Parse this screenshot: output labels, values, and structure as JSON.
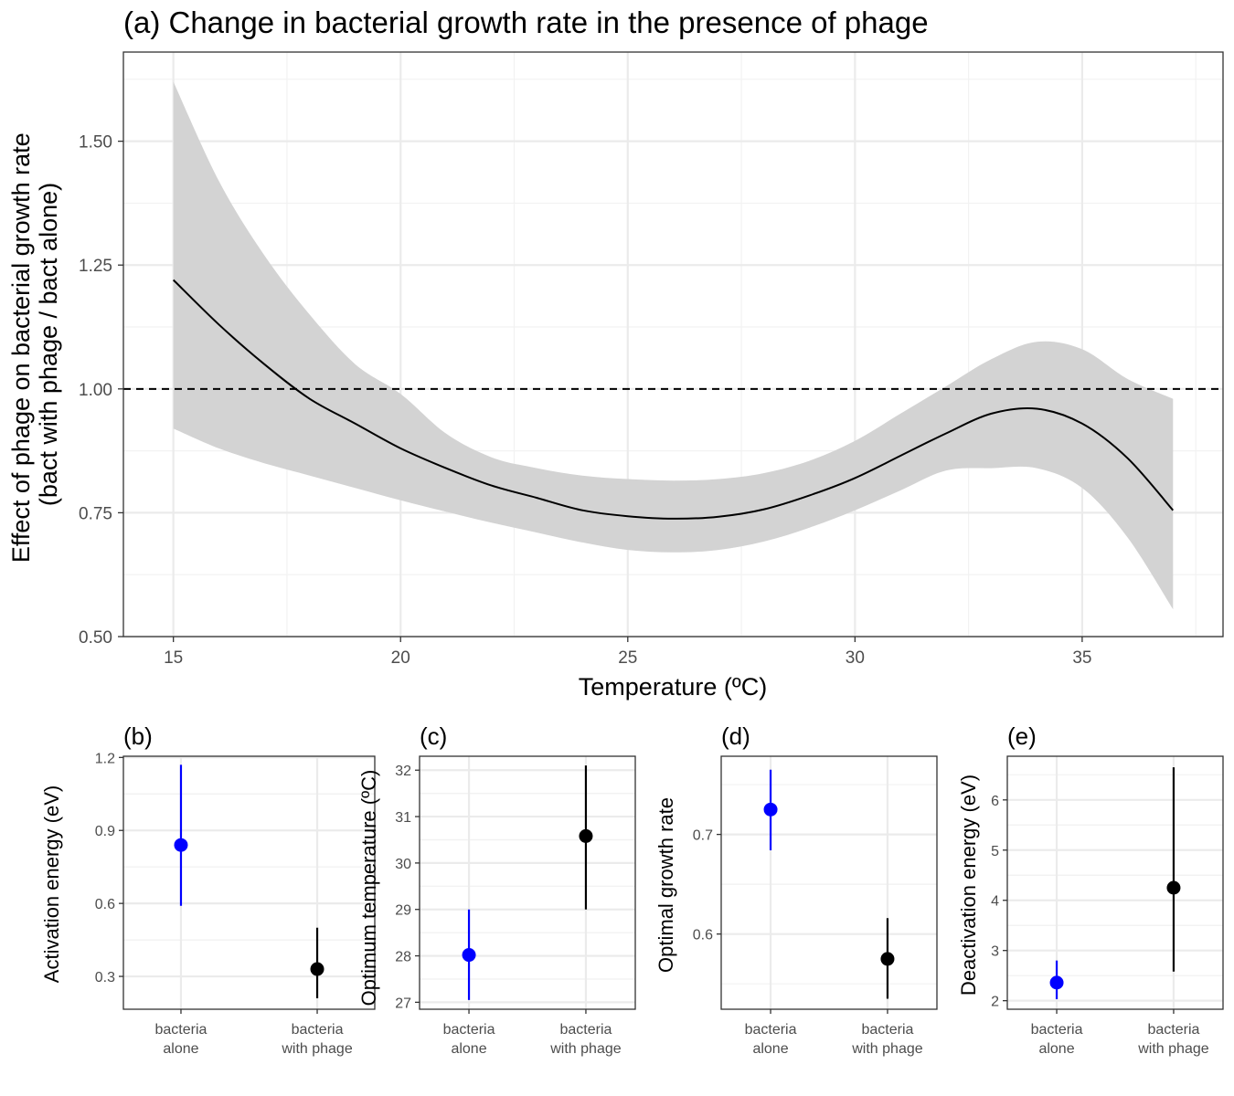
{
  "figure": {
    "colors": {
      "alone": "#0000ff",
      "phage": "#000000",
      "ribbon": "#d3d3d3",
      "grid": "#ebebeb"
    }
  },
  "chart_data": [
    {
      "id": "a",
      "type": "line",
      "title": "(a) Change in bacterial growth rate in the presence of phage",
      "xlabel": "Temperature (ºC)",
      "ylabel": [
        "Effect of phage on bacterial growth rate",
        "(bact with phage / bact alone)"
      ],
      "xlim": [
        13.9,
        38.1
      ],
      "ylim": [
        0.5,
        1.68
      ],
      "xticks": [
        15,
        20,
        25,
        30,
        35
      ],
      "yticks": [
        0.5,
        0.75,
        1.0,
        1.25,
        1.5
      ],
      "ytick_labels": [
        "0.50",
        "0.75",
        "1.00",
        "1.25",
        "1.50"
      ],
      "reference_line": 1.0,
      "grid": true,
      "series": [
        {
          "x": [
            15,
            16,
            17,
            18,
            19,
            20,
            21,
            22,
            23,
            24,
            25,
            26,
            27,
            28,
            29,
            30,
            31,
            32,
            33,
            34,
            35,
            36,
            37
          ],
          "y": [
            1.22,
            1.13,
            1.05,
            0.98,
            0.93,
            0.88,
            0.84,
            0.805,
            0.78,
            0.755,
            0.743,
            0.738,
            0.742,
            0.757,
            0.785,
            0.82,
            0.865,
            0.91,
            0.95,
            0.96,
            0.93,
            0.86,
            0.755
          ],
          "lower": [
            0.92,
            0.88,
            0.85,
            0.825,
            0.8,
            0.775,
            0.752,
            0.73,
            0.71,
            0.69,
            0.675,
            0.67,
            0.675,
            0.692,
            0.72,
            0.755,
            0.795,
            0.835,
            0.84,
            0.84,
            0.8,
            0.7,
            0.555
          ],
          "upper": [
            1.62,
            1.42,
            1.27,
            1.15,
            1.05,
            0.99,
            0.91,
            0.862,
            0.84,
            0.825,
            0.818,
            0.815,
            0.818,
            0.83,
            0.855,
            0.895,
            0.95,
            1.005,
            1.06,
            1.095,
            1.08,
            1.02,
            0.98
          ]
        }
      ]
    },
    {
      "id": "b",
      "type": "scatter",
      "title": "(b)",
      "ylabel": "Activation energy (eV)",
      "categories": [
        "bacteria\nalone",
        "bacteria\nwith phage"
      ],
      "ylim": [
        0.165,
        1.205
      ],
      "yticks": [
        0.3,
        0.6,
        0.9,
        1.2
      ],
      "ytick_labels": [
        "0.3",
        "0.6",
        "0.9",
        "1.2"
      ],
      "points": [
        {
          "value": 0.84,
          "lower": 0.59,
          "upper": 1.17,
          "color": "#0000ff"
        },
        {
          "value": 0.33,
          "lower": 0.21,
          "upper": 0.5,
          "color": "#000000"
        }
      ]
    },
    {
      "id": "c",
      "type": "scatter",
      "title": "(c)",
      "ylabel": "Optimum temperature (ºC)",
      "categories": [
        "bacteria\nalone",
        "bacteria\nwith phage"
      ],
      "ylim": [
        26.85,
        32.3
      ],
      "yticks": [
        27,
        28,
        29,
        30,
        31,
        32
      ],
      "ytick_labels": [
        "27",
        "28",
        "29",
        "30",
        "31",
        "32"
      ],
      "points": [
        {
          "value": 28.02,
          "lower": 27.05,
          "upper": 29.0,
          "color": "#0000ff"
        },
        {
          "value": 30.58,
          "lower": 29.0,
          "upper": 32.1,
          "color": "#000000"
        }
      ]
    },
    {
      "id": "d",
      "type": "scatter",
      "title": "(d)",
      "ylabel": "Optimal growth rate",
      "categories": [
        "bacteria\nalone",
        "bacteria\nwith phage"
      ],
      "ylim": [
        0.5245,
        0.7785
      ],
      "yticks": [
        0.6,
        0.7
      ],
      "ytick_labels": [
        "0.6",
        "0.7"
      ],
      "points": [
        {
          "value": 0.725,
          "lower": 0.684,
          "upper": 0.765,
          "color": "#0000ff"
        },
        {
          "value": 0.575,
          "lower": 0.535,
          "upper": 0.616,
          "color": "#000000"
        }
      ]
    },
    {
      "id": "e",
      "type": "scatter",
      "title": "(e)",
      "ylabel": "Deactivation energy (eV)",
      "categories": [
        "bacteria\nalone",
        "bacteria\nwith phage"
      ],
      "ylim": [
        1.83,
        6.87
      ],
      "yticks": [
        2,
        3,
        4,
        5,
        6
      ],
      "ytick_labels": [
        "2",
        "3",
        "4",
        "5",
        "6"
      ],
      "points": [
        {
          "value": 2.36,
          "lower": 2.03,
          "upper": 2.8,
          "color": "#0000ff"
        },
        {
          "value": 4.25,
          "lower": 2.58,
          "upper": 6.65,
          "color": "#000000"
        }
      ]
    }
  ]
}
